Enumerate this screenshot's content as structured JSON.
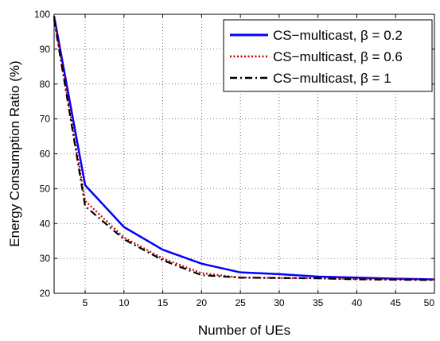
{
  "chart_data": {
    "type": "line",
    "xlabel": "Number of UEs",
    "ylabel": "Energy Consumption Ratio (%)",
    "xlim": [
      1,
      50
    ],
    "ylim": [
      20,
      100
    ],
    "xticks": [
      5,
      10,
      15,
      20,
      25,
      30,
      35,
      40,
      45,
      50
    ],
    "yticks": [
      20,
      30,
      40,
      50,
      60,
      70,
      80,
      90,
      100
    ],
    "grid": true,
    "legend_position": "top-right",
    "series": [
      {
        "name": "CS−multicast, β = 0.2",
        "color": "#0000ff",
        "style": "solid",
        "x": [
          1,
          5,
          10,
          15,
          20,
          25,
          30,
          35,
          40,
          45,
          50
        ],
        "values": [
          99.5,
          51,
          39,
          32.5,
          28.5,
          26,
          25.5,
          24.8,
          24.5,
          24.2,
          24
        ]
      },
      {
        "name": "CS−multicast, β = 0.6",
        "color": "#cc0000",
        "style": "dotted",
        "x": [
          1,
          5,
          10,
          15,
          20,
          25,
          30,
          35,
          40,
          45,
          50
        ],
        "values": [
          99,
          46.5,
          36,
          30,
          25.8,
          24.5,
          24.4,
          24.3,
          24.1,
          24,
          23.9
        ]
      },
      {
        "name": "CS−multicast, β = 1",
        "color": "#000000",
        "style": "dashdot",
        "x": [
          1,
          5,
          10,
          15,
          20,
          25,
          30,
          35,
          40,
          45,
          50
        ],
        "values": [
          98.5,
          45,
          35.5,
          29.5,
          25.2,
          24.5,
          24.4,
          24.3,
          24,
          23.9,
          23.8
        ]
      }
    ]
  }
}
